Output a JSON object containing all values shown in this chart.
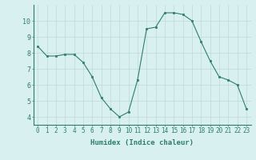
{
  "x": [
    0,
    1,
    2,
    3,
    4,
    5,
    6,
    7,
    8,
    9,
    10,
    11,
    12,
    13,
    14,
    15,
    16,
    17,
    18,
    19,
    20,
    21,
    22,
    23
  ],
  "y": [
    8.4,
    7.8,
    7.8,
    7.9,
    7.9,
    7.4,
    6.5,
    5.2,
    4.5,
    4.0,
    4.3,
    6.3,
    9.5,
    9.6,
    10.5,
    10.5,
    10.4,
    10.0,
    8.7,
    7.5,
    6.5,
    6.3,
    6.0,
    4.5
  ],
  "xlabel": "Humidex (Indice chaleur)",
  "ylim": [
    3.5,
    11.0
  ],
  "xlim": [
    -0.5,
    23.5
  ],
  "line_color": "#2e7d6e",
  "marker": "s",
  "marker_size": 2,
  "bg_color": "#d9f0f0",
  "grid_color": "#c0d8d8",
  "yticks": [
    4,
    5,
    6,
    7,
    8,
    9,
    10
  ],
  "xticks": [
    0,
    1,
    2,
    3,
    4,
    5,
    6,
    7,
    8,
    9,
    10,
    11,
    12,
    13,
    14,
    15,
    16,
    17,
    18,
    19,
    20,
    21,
    22,
    23
  ],
  "xlabel_fontsize": 6.5,
  "tick_fontsize": 5.5,
  "ytick_fontsize": 6.0
}
